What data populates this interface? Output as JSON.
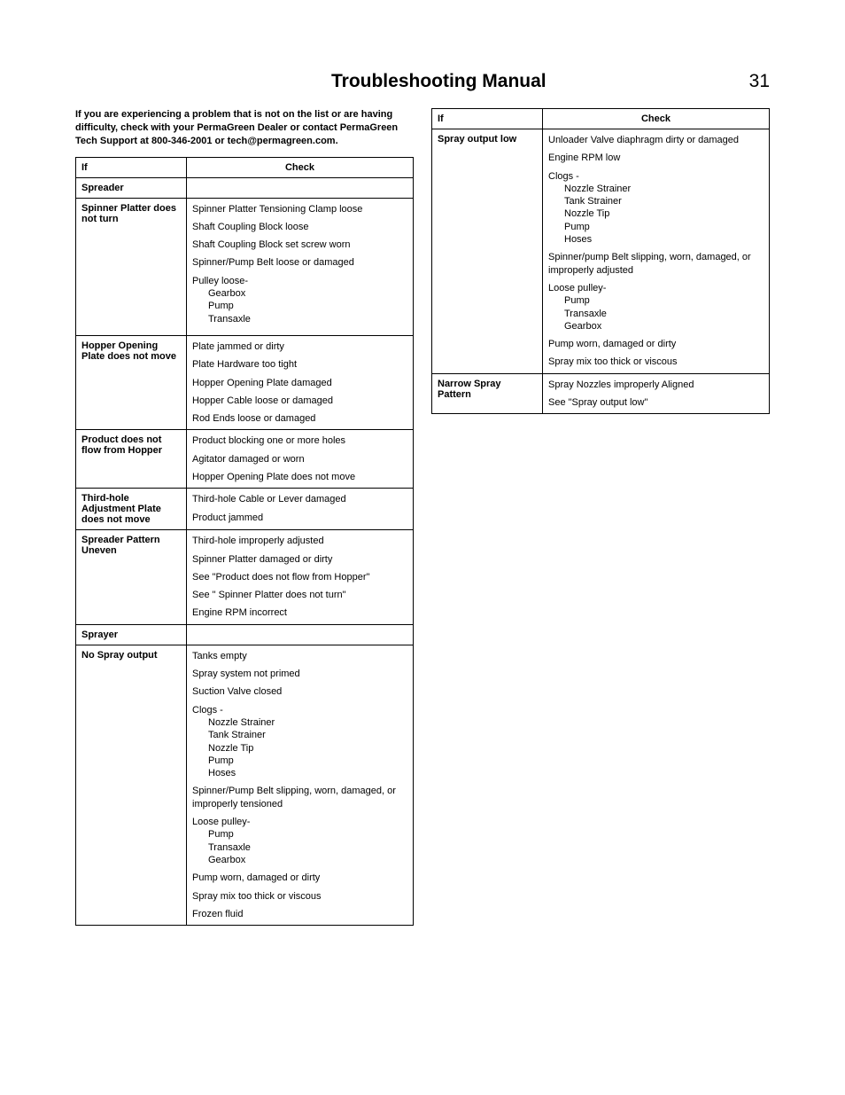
{
  "header": {
    "title": "Troubleshooting Manual",
    "page_number": "31"
  },
  "intro_text": "If you are experiencing a problem that is not on the list or are having difficulty, check with your PermaGreen Dealer or contact PermaGreen Tech Support at 800-346-2001 or tech@permagreen.com.",
  "table_headers": {
    "if": "If",
    "check": "Check"
  },
  "left_table": {
    "rows": [
      {
        "if": "Spreader",
        "check": ""
      },
      {
        "if": "Spinner Platter does not turn",
        "check_items": [
          {
            "text": "Spinner Platter Tensioning Clamp loose"
          },
          {
            "text": "Shaft Coupling Block loose"
          },
          {
            "text": "Shaft Coupling Block set screw  worn"
          },
          {
            "text": "Spinner/Pump Belt loose or damaged"
          },
          {
            "text": "Pulley loose-",
            "sub": [
              "Gearbox",
              "Pump",
              "Transaxle"
            ]
          }
        ]
      },
      {
        "if": "Hopper Opening Plate does not move",
        "check_items": [
          {
            "text": "Plate jammed or dirty"
          },
          {
            "text": "Plate Hardware too tight"
          },
          {
            "text": "Hopper Opening Plate damaged"
          },
          {
            "text": "Hopper Cable loose or damaged"
          },
          {
            "text": "Rod Ends loose or damaged"
          }
        ]
      },
      {
        "if": "Product does not flow from Hopper",
        "check_items": [
          {
            "text": "Product blocking one or more holes"
          },
          {
            "text": "Agitator  damaged or worn"
          },
          {
            "text": "Hopper Opening Plate does not move"
          }
        ]
      },
      {
        "if": "Third-hole Adjustment Plate does not move",
        "check_items": [
          {
            "text": "Third-hole Cable or Lever damaged"
          },
          {
            "text": "Product jammed"
          }
        ]
      },
      {
        "if": "Spreader Pattern Uneven",
        "check_items": [
          {
            "text": "Third-hole improperly adjusted"
          },
          {
            "text": "Spinner Platter damaged or dirty"
          },
          {
            "text": "See \"Product does not flow from Hopper\""
          },
          {
            "text": "See \" Spinner Platter does not turn\""
          },
          {
            "text": "Engine RPM incorrect"
          }
        ]
      },
      {
        "if": "Sprayer",
        "check": ""
      },
      {
        "if": "No Spray output",
        "check_items": [
          {
            "text": "Tanks empty"
          },
          {
            "text": "Spray system not primed"
          },
          {
            "text": "Suction Valve closed"
          },
          {
            "text": "Clogs -",
            "sub": [
              "Nozzle Strainer",
              "Tank Strainer",
              "Nozzle Tip",
              "Pump",
              "Hoses"
            ]
          },
          {
            "text": "Spinner/Pump Belt slipping, worn, damaged, or improperly tensioned"
          },
          {
            "text": "Loose pulley-",
            "sub": [
              "Pump",
              "Transaxle",
              "Gearbox"
            ]
          },
          {
            "text": "Pump worn, damaged or dirty"
          },
          {
            "text": "Spray mix too thick or viscous"
          },
          {
            "text": "Frozen fluid"
          }
        ]
      }
    ]
  },
  "right_table": {
    "rows": [
      {
        "if": "Spray output low",
        "check_items": [
          {
            "text": "Unloader Valve  diaphragm dirty or damaged"
          },
          {
            "text": "Engine RPM low"
          },
          {
            "text": "Clogs -",
            "sub": [
              "Nozzle Strainer",
              "Tank Strainer",
              "Nozzle Tip",
              "Pump",
              "Hoses"
            ]
          },
          {
            "text": "Spinner/pump Belt slipping, worn, damaged, or improperly adjusted"
          },
          {
            "text": "Loose pulley-",
            "sub": [
              "Pump",
              "Transaxle",
              "Gearbox"
            ]
          },
          {
            "text": "Pump worn, damaged or dirty"
          },
          {
            "text": "Spray mix too thick or viscous"
          }
        ]
      },
      {
        "if": "Narrow Spray Pattern",
        "check_items": [
          {
            "text": "Spray Nozzles improperly Aligned"
          },
          {
            "text": "See \"Spray output low\""
          }
        ]
      }
    ]
  }
}
